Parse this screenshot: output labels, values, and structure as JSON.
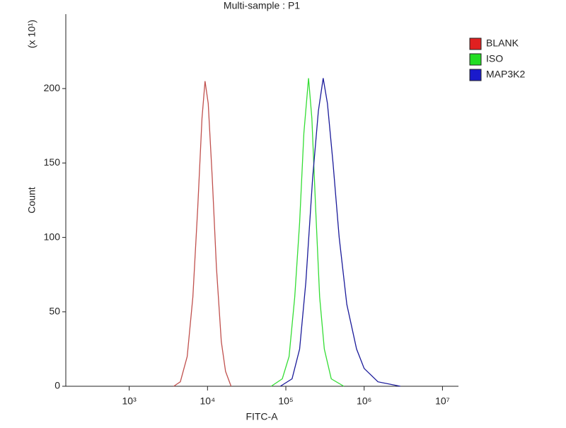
{
  "chart_data": {
    "type": "line",
    "title": "Multi-sample : P1",
    "xlabel": "FITC-A",
    "ylabel": "Count",
    "y_unit_label": "(x 10¹)",
    "xscale": "log",
    "xlim": [
      155,
      16000000
    ],
    "ylim": [
      0,
      250
    ],
    "xticks": [
      {
        "value": 1000,
        "label": "10³"
      },
      {
        "value": 10000,
        "label": "10⁴"
      },
      {
        "value": 100000,
        "label": "10⁵"
      },
      {
        "value": 1000000,
        "label": "10⁶"
      },
      {
        "value": 10000000,
        "label": "10⁷"
      }
    ],
    "yticks": [
      0,
      50,
      100,
      150,
      200
    ],
    "legend": "top-right",
    "series": [
      {
        "name": "BLANK",
        "color": "#c0504d",
        "x": [
          3700,
          4500,
          5500,
          6500,
          7500,
          8500,
          9300,
          10200,
          11500,
          13000,
          15000,
          17000,
          20000
        ],
        "values": [
          0,
          3,
          20,
          60,
          120,
          180,
          205,
          190,
          140,
          80,
          30,
          10,
          0
        ]
      },
      {
        "name": "ISO",
        "color": "#33dd33",
        "x": [
          65000,
          90000,
          110000,
          130000,
          150000,
          170000,
          195000,
          215000,
          240000,
          270000,
          310000,
          380000,
          550000
        ],
        "values": [
          0,
          5,
          20,
          60,
          110,
          170,
          207,
          180,
          120,
          60,
          25,
          5,
          0
        ]
      },
      {
        "name": "MAP3K2",
        "color": "#1a1a9a",
        "x": [
          85000,
          120000,
          150000,
          180000,
          220000,
          260000,
          300000,
          340000,
          400000,
          480000,
          600000,
          800000,
          1000000,
          1500000,
          2900000
        ],
        "values": [
          0,
          5,
          25,
          70,
          140,
          185,
          207,
          190,
          150,
          100,
          55,
          25,
          12,
          3,
          0
        ]
      }
    ],
    "legend_colors": [
      "#e02020",
      "#22dd22",
      "#1a1acc"
    ]
  }
}
